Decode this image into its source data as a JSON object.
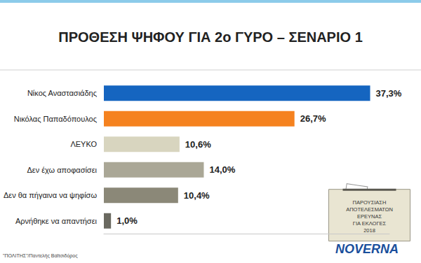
{
  "chart_data": {
    "type": "bar",
    "orientation": "horizontal",
    "title": "ΠΡΟΘΕΣΗ ΨΗΦΟΥ ΓΙΑ 2ο ΓΥΡΟ – ΣΕΝΑΡΙΟ 1",
    "categories": [
      "Νίκος Αναστασιάδης",
      "Νικόλας Παπαδόπουλος",
      "ΛΕΥΚΟ",
      "Δεν έχω αποφασίσει",
      "Δεν θα πήγαινα να ψηφίσω",
      "Αρνήθηκε να απαντήσει"
    ],
    "values": [
      37.3,
      26.7,
      10.6,
      14.0,
      10.4,
      1.0
    ],
    "value_labels": [
      "37,3%",
      "26,7%",
      "10,6%",
      "14,0%",
      "10,4%",
      "1,0%"
    ],
    "colors": [
      "#1565c0",
      "#f5821f",
      "#d8d5bf",
      "#aaa796",
      "#8b8878",
      "#6a6960"
    ],
    "data_labels": true,
    "tick_labels": false,
    "grid": false,
    "xlim": [
      0,
      40
    ],
    "annotations": [
      "ΠΑΡΟΥΣΙΑΣΗ\nΑΠΟΤΕΛΕΣΜΑΤΩΝ\nΕΡΕΥΝΑΣ\nΓΙΑ ΕΚΛΟΓΕΣ\n2018",
      "NOVERNA",
      "\"ΠΟΛΙΤΗΣ\"/Παντελής Βαϊτσιδόρος"
    ]
  }
}
